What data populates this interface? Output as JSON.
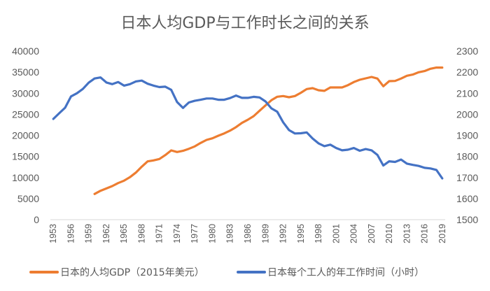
{
  "chart_data": {
    "type": "line",
    "title": "日本人均GDP与工作时长之间的关系",
    "x": [
      1953,
      1954,
      1955,
      1956,
      1957,
      1958,
      1959,
      1960,
      1961,
      1962,
      1963,
      1964,
      1965,
      1966,
      1967,
      1968,
      1969,
      1970,
      1971,
      1972,
      1973,
      1974,
      1975,
      1976,
      1977,
      1978,
      1979,
      1980,
      1981,
      1982,
      1983,
      1984,
      1985,
      1986,
      1987,
      1988,
      1989,
      1990,
      1991,
      1992,
      1993,
      1994,
      1995,
      1996,
      1997,
      1998,
      1999,
      2000,
      2001,
      2002,
      2003,
      2004,
      2005,
      2006,
      2007,
      2008,
      2009,
      2010,
      2011,
      2012,
      2013,
      2014,
      2015,
      2016,
      2017,
      2018,
      2019
    ],
    "x_tick_labels": [
      "1953",
      "1956",
      "1959",
      "1962",
      "1965",
      "1968",
      "1971",
      "1974",
      "1977",
      "1980",
      "1983",
      "1986",
      "1989",
      "1992",
      "1995",
      "1998",
      "2001",
      "2004",
      "2007",
      "2010",
      "2013",
      "2016",
      "2019"
    ],
    "y_left": {
      "ylim": [
        0,
        40000
      ],
      "ticks": [
        "0",
        "5000",
        "10000",
        "15000",
        "20000",
        "25000",
        "30000",
        "35000",
        "40000"
      ]
    },
    "y_right": {
      "ylim": [
        1500,
        2300
      ],
      "ticks": [
        "1500",
        "1600",
        "1700",
        "1800",
        "1900",
        "2000",
        "2100",
        "2200",
        "2300"
      ]
    },
    "grid": false,
    "legend_position": "bottom",
    "series": [
      {
        "name": "日本的人均GDP（2015年美元）",
        "axis": "left",
        "color": "#ED7D31",
        "values": [
          null,
          null,
          null,
          null,
          null,
          null,
          null,
          6090,
          6860,
          7400,
          7970,
          8680,
          9240,
          10080,
          11170,
          12560,
          13830,
          14050,
          14390,
          15320,
          16430,
          16050,
          16330,
          16820,
          17380,
          18210,
          18920,
          19310,
          19920,
          20470,
          21130,
          21960,
          22960,
          23700,
          24570,
          25850,
          27110,
          28340,
          29170,
          29330,
          29050,
          29330,
          30100,
          30990,
          31200,
          30710,
          30550,
          31370,
          31370,
          31370,
          31920,
          32650,
          33200,
          33530,
          33860,
          33480,
          31650,
          32870,
          32920,
          33480,
          34140,
          34420,
          34970,
          35250,
          35800,
          36080,
          36080
        ]
      },
      {
        "name": "日本每个工人的年工作时间（小时）",
        "axis": "right",
        "color": "#4472C4",
        "values": [
          1978,
          2005,
          2031,
          2085,
          2100,
          2120,
          2150,
          2170,
          2175,
          2151,
          2143,
          2153,
          2136,
          2143,
          2156,
          2160,
          2145,
          2136,
          2129,
          2131,
          2116,
          2058,
          2030,
          2056,
          2064,
          2069,
          2075,
          2075,
          2069,
          2069,
          2077,
          2089,
          2078,
          2078,
          2083,
          2080,
          2061,
          2028,
          2012,
          1962,
          1925,
          1909,
          1910,
          1914,
          1885,
          1862,
          1849,
          1856,
          1840,
          1829,
          1832,
          1840,
          1827,
          1835,
          1829,
          1807,
          1757,
          1777,
          1774,
          1785,
          1766,
          1760,
          1755,
          1746,
          1743,
          1736,
          1696
        ]
      }
    ]
  }
}
